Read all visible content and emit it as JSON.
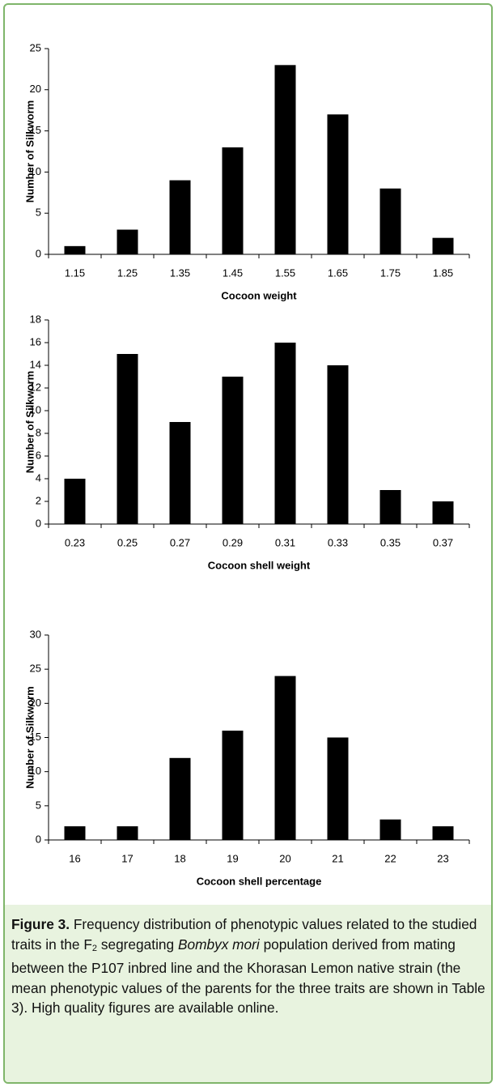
{
  "chart_data": [
    {
      "type": "bar",
      "xlabel": "Cocoon weight",
      "ylabel": "Number of Silkworm",
      "categories": [
        "1.15",
        "1.25",
        "1.35",
        "1.45",
        "1.55",
        "1.65",
        "1.75",
        "1.85"
      ],
      "values": [
        1,
        3,
        9,
        13,
        23,
        17,
        8,
        2
      ],
      "color": "#000000",
      "ylim": [
        0,
        25
      ],
      "yticks": [
        0,
        5,
        10,
        15,
        20,
        25
      ],
      "grid": false
    },
    {
      "type": "bar",
      "xlabel": "Cocoon shell weight",
      "ylabel": "Number of Silkworm",
      "categories": [
        "0.23",
        "0.25",
        "0.27",
        "0.29",
        "0.31",
        "0.33",
        "0.35",
        "0.37"
      ],
      "values": [
        4,
        15,
        9,
        13,
        16,
        14,
        3,
        2
      ],
      "color": "#000000",
      "ylim": [
        0,
        18
      ],
      "yticks": [
        0,
        2,
        4,
        6,
        8,
        10,
        12,
        14,
        16,
        18
      ],
      "grid": false
    },
    {
      "type": "bar",
      "xlabel": "Cocoon shell percentage",
      "ylabel": "Number of Silkworm",
      "categories": [
        "16",
        "17",
        "18",
        "19",
        "20",
        "21",
        "22",
        "23"
      ],
      "values": [
        2,
        2,
        12,
        16,
        24,
        15,
        3,
        2
      ],
      "color": "#000000",
      "ylim": [
        0,
        30
      ],
      "yticks": [
        0,
        5,
        10,
        15,
        20,
        25,
        30
      ],
      "grid": false
    }
  ],
  "caption": {
    "label": "Figure 3.",
    "parts": [
      " Frequency distribution of phenotypic values related to the studied traits in the F",
      "2",
      " segregating ",
      "Bombyx mori",
      " population derived from mating between the P107 inbred line and the Khorasan Lemon native strain (the mean phenotypic values of the parents for the three traits are shown in Table 3). High quality figures are available online."
    ]
  }
}
